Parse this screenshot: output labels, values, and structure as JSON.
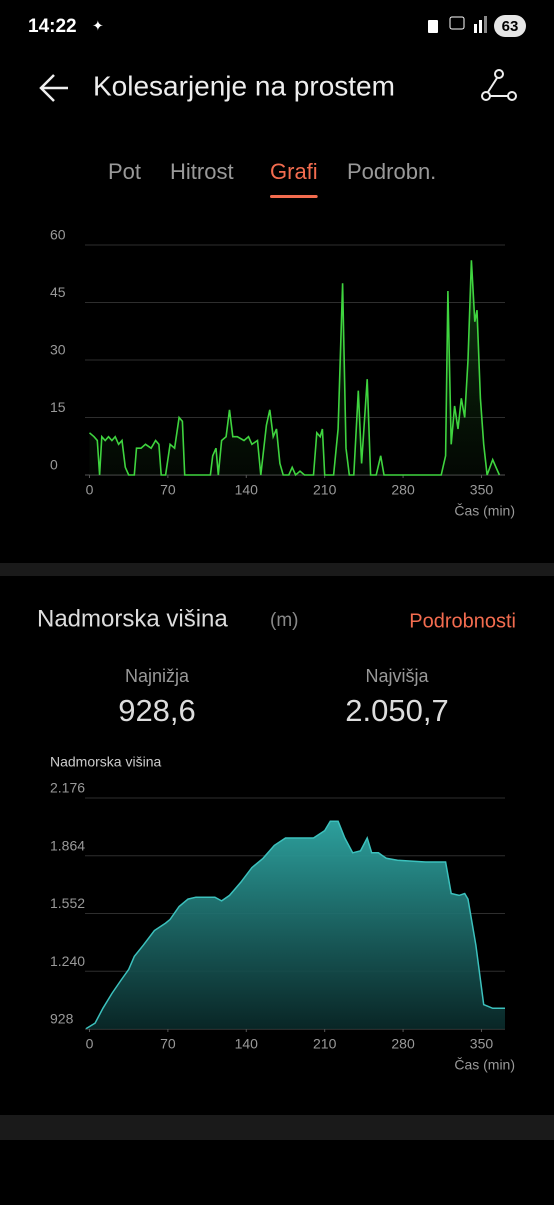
{
  "status_bar": {
    "time": "14:22",
    "battery": "63"
  },
  "header": {
    "title": "Kolesarjenje na prostem"
  },
  "tabs": {
    "items": [
      "Pot",
      "Hitrost",
      "Grafi",
      "Podrobn."
    ],
    "active": 2,
    "active_color": "#f36c4f"
  },
  "elevation_section": {
    "title": "Nadmorska višina",
    "unit": "(m)",
    "link": "Podrobnosti",
    "min_label": "Najnižja",
    "min_value": "928,6",
    "max_label": "Najvišja",
    "max_value": "2.050,7"
  },
  "chart_data": [
    {
      "type": "line",
      "color": "#3fd43f",
      "x_label": "Čas (min)",
      "grid": true,
      "xlim": [
        -4,
        371
      ],
      "xticks": [
        0,
        70,
        140,
        210,
        280,
        350
      ],
      "ylim": [
        0,
        60
      ],
      "yticks": [
        0,
        15,
        30,
        45,
        60
      ],
      "x": [
        0,
        4,
        7,
        9,
        11,
        14,
        17,
        20,
        23,
        26,
        29,
        32,
        35,
        40,
        42,
        46,
        50,
        55,
        59,
        62,
        64,
        68,
        72,
        76,
        80,
        83,
        85,
        90,
        100,
        108,
        110,
        113,
        115,
        118,
        122,
        125,
        128,
        132,
        138,
        142,
        145,
        150,
        153,
        158,
        161,
        164,
        167,
        170,
        173,
        178,
        181,
        184,
        188,
        192,
        200,
        203,
        206,
        208,
        210,
        215,
        218,
        222,
        226,
        229,
        232,
        236,
        240,
        243,
        245,
        248,
        251,
        256,
        260,
        263,
        270,
        300,
        314,
        318,
        320,
        323,
        326,
        329,
        332,
        335,
        338,
        341,
        344,
        346,
        349,
        352,
        355,
        360,
        363,
        366
      ],
      "values": [
        11,
        10,
        9,
        0,
        10,
        9,
        10,
        9,
        10,
        8,
        9,
        2,
        0,
        0,
        7,
        7,
        8,
        7,
        9,
        8,
        0,
        0,
        8,
        7,
        15,
        14,
        0,
        0,
        0,
        0,
        5,
        7,
        0,
        9,
        10,
        17,
        10,
        10,
        9,
        10,
        8,
        9,
        0,
        13,
        17,
        10,
        12,
        3,
        0,
        0,
        2,
        0,
        1,
        0,
        0,
        11,
        10,
        12,
        0,
        0,
        0,
        12,
        50,
        7,
        0,
        0,
        22,
        3,
        12,
        25,
        0,
        0,
        5,
        0,
        0,
        0,
        0,
        5,
        48,
        8,
        18,
        12,
        20,
        15,
        30,
        56,
        40,
        43,
        20,
        8,
        0,
        4,
        2,
        0
      ]
    },
    {
      "type": "area",
      "color": "#3cc1bd",
      "y_label": "Nadmorska višina",
      "x_label": "Čas (min)",
      "grid": true,
      "xlim": [
        -4,
        371
      ],
      "xticks": [
        0,
        70,
        140,
        210,
        280,
        350
      ],
      "ylim": [
        928,
        2176
      ],
      "yticks": [
        928,
        {
          "value": 1240,
          "label": "1.240"
        },
        {
          "value": 1552,
          "label": "1.552"
        },
        {
          "value": 1864,
          "label": "1.864"
        },
        {
          "value": 2176,
          "label": "2.176"
        }
      ],
      "x": [
        -3,
        5,
        12,
        20,
        28,
        35,
        40,
        48,
        58,
        68,
        72,
        80,
        88,
        95,
        112,
        118,
        125,
        135,
        145,
        155,
        165,
        175,
        185,
        200,
        210,
        215,
        222,
        228,
        235,
        242,
        248,
        252,
        258,
        265,
        275,
        300,
        318,
        323,
        330,
        335,
        338,
        345,
        352,
        360,
        371
      ],
      "values": [
        930,
        960,
        1040,
        1120,
        1190,
        1250,
        1320,
        1380,
        1460,
        1500,
        1520,
        1590,
        1630,
        1640,
        1640,
        1620,
        1650,
        1720,
        1800,
        1850,
        1920,
        1960,
        1960,
        1960,
        2000,
        2050,
        2050,
        1960,
        1880,
        1890,
        1960,
        1880,
        1880,
        1850,
        1840,
        1830,
        1830,
        1660,
        1650,
        1660,
        1630,
        1380,
        1060,
        1040,
        1040
      ]
    }
  ]
}
